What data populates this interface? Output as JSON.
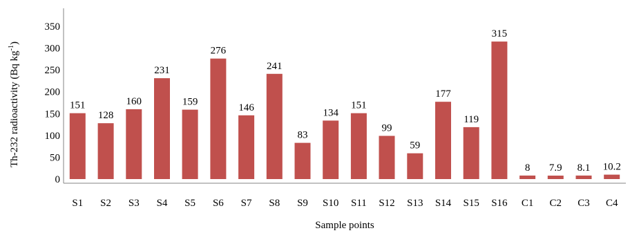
{
  "chart_data": {
    "type": "bar",
    "categories": [
      "S1",
      "S2",
      "S3",
      "S4",
      "S5",
      "S6",
      "S7",
      "S8",
      "S9",
      "S10",
      "S11",
      "S12",
      "S13",
      "S14",
      "S15",
      "S16",
      "C1",
      "C2",
      "C3",
      "C4"
    ],
    "values": [
      151,
      128,
      160,
      231,
      159,
      276,
      146,
      241,
      83,
      134,
      151,
      99,
      59,
      177,
      119,
      315,
      8,
      7.9,
      8.1,
      10.2
    ],
    "data_labels": [
      "151",
      "128",
      "160",
      "231",
      "159",
      "276",
      "146",
      "241",
      "83",
      "134",
      "151",
      "99",
      "59",
      "177",
      "119",
      "315",
      "8",
      "7.9",
      "8.1",
      "10.2"
    ],
    "y_ticks": [
      0,
      50,
      100,
      150,
      200,
      250,
      300,
      350
    ],
    "ylim": [
      0,
      350
    ],
    "xlabel": "Sample points",
    "ylabel": "Th-232 radioactivity (Bq kg",
    "ylabel_sup": "-1",
    "ylabel_end": ")",
    "bar_color": "#c0504d",
    "axis_color": "#868686",
    "grid": false,
    "legend": "none"
  }
}
